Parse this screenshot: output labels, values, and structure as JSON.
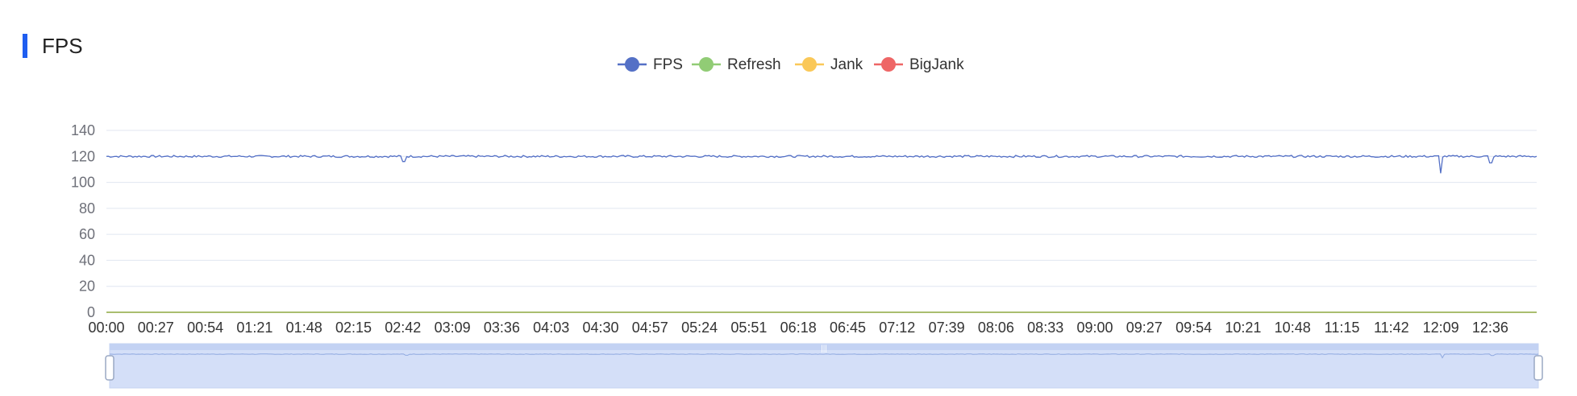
{
  "panel": {
    "title": "FPS"
  },
  "chart_data": {
    "type": "line",
    "legend_position": "top-center",
    "series": [
      {
        "name": "FPS",
        "color": "#5470c6",
        "base": 120
      },
      {
        "name": "Refresh",
        "color": "#91cc75",
        "base": 0
      },
      {
        "name": "Jank",
        "color": "#fac858",
        "base": 0
      },
      {
        "name": "BigJank",
        "color": "#ee6666",
        "base": 0
      }
    ],
    "fps_dips": [
      {
        "x": "02:42",
        "value": 116
      },
      {
        "x": "12:09",
        "value": 107
      },
      {
        "x": "12:36",
        "value": 115
      }
    ],
    "y_ticks": [
      "0",
      "20",
      "40",
      "60",
      "80",
      "100",
      "120",
      "140"
    ],
    "ylim": [
      0,
      140
    ],
    "x_ticks": [
      "00:00",
      "00:27",
      "00:54",
      "01:21",
      "01:48",
      "02:15",
      "02:42",
      "03:09",
      "03:36",
      "04:03",
      "04:30",
      "04:57",
      "05:24",
      "05:51",
      "06:18",
      "06:45",
      "07:12",
      "07:39",
      "08:06",
      "08:33",
      "09:00",
      "09:27",
      "09:54",
      "10:21",
      "10:48",
      "11:15",
      "11:42",
      "12:09",
      "12:36"
    ],
    "x_range_seconds": [
      0,
      780
    ],
    "grid": true,
    "datazoom": {
      "start_percent": 0,
      "end_percent": 100
    }
  }
}
